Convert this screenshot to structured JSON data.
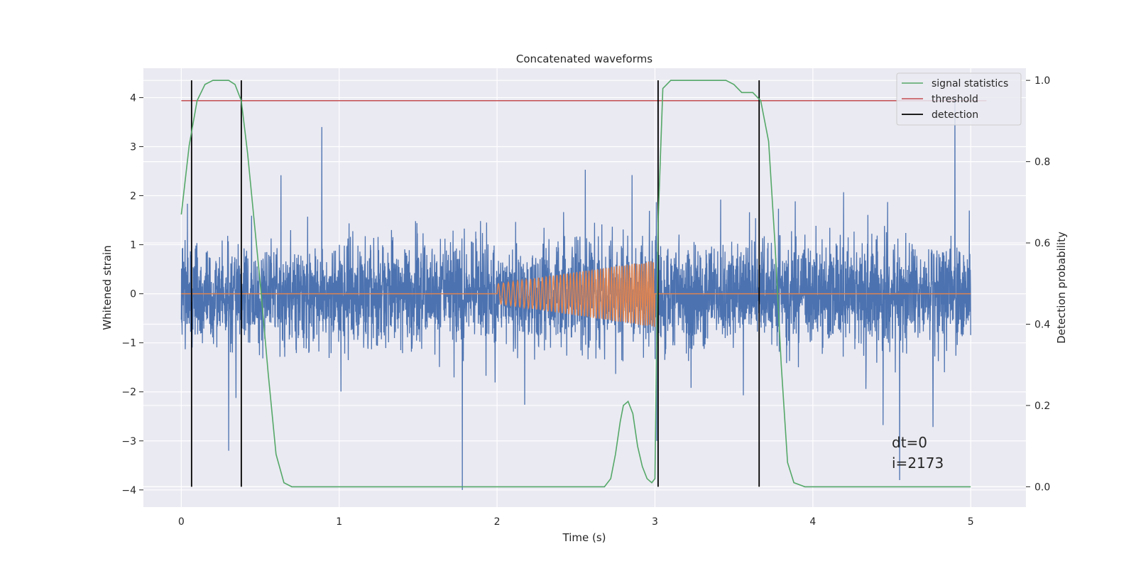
{
  "chart_data": {
    "type": "line",
    "title": "Concatenated waveforms",
    "xlabel": "Time (s)",
    "ylabel": "Whitened strain",
    "y2label": "Detection probability",
    "xlim": [
      -0.24,
      5.35
    ],
    "ylim": [
      -4.35,
      4.6
    ],
    "y2lim": [
      -0.05,
      1.03
    ],
    "x_ticks": [
      0,
      1,
      2,
      3,
      4,
      5
    ],
    "x_tick_labels": [
      "0",
      "1",
      "2",
      "3",
      "4",
      "5"
    ],
    "y_ticks": [
      -4,
      -3,
      -2,
      -1,
      0,
      1,
      2,
      3,
      4
    ],
    "y_tick_labels": [
      "−4",
      "−3",
      "−2",
      "−1",
      "0",
      "1",
      "2",
      "3",
      "4"
    ],
    "y2_ticks": [
      0.0,
      0.2,
      0.4,
      0.6,
      0.8,
      1.0
    ],
    "y2_tick_labels": [
      "0.0",
      "0.2",
      "0.4",
      "0.6",
      "0.8",
      "1.0"
    ],
    "grid": true,
    "legend_position": "top-right",
    "annotations": [
      "dt=0",
      "i=2173"
    ],
    "series": [
      {
        "axis": "left",
        "color": "#4c72b0",
        "kind": "noise",
        "x_range": [
          0,
          5
        ],
        "envelope_typical": [
          -1.5,
          2.2
        ],
        "notable_spikes": [
          [
            0.3,
            3.3
          ],
          [
            0.89,
            3.4
          ],
          [
            1.78,
            -4.0
          ],
          [
            4.55,
            -3.8
          ],
          [
            4.9,
            4.0
          ],
          [
            0.3,
            -3.2
          ]
        ]
      },
      {
        "axis": "left",
        "color": "#dd8452",
        "kind": "chirp",
        "x_range": [
          0,
          5
        ],
        "chirp_start": 2.0,
        "chirp_end": 3.0,
        "chirp_start_amplitude": 0.2,
        "chirp_end_amplitude": 0.68
      },
      {
        "name": "signal statistics",
        "axis": "right",
        "color": "#55a868",
        "x": [
          0,
          0.05,
          0.1,
          0.15,
          0.2,
          0.25,
          0.3,
          0.34,
          0.38,
          0.42,
          0.45,
          0.5,
          0.55,
          0.6,
          0.65,
          0.7,
          1.5,
          2.0,
          2.5,
          2.68,
          2.72,
          2.75,
          2.78,
          2.8,
          2.83,
          2.86,
          2.89,
          2.92,
          2.95,
          2.98,
          3.0,
          3.02,
          3.05,
          3.1,
          3.3,
          3.45,
          3.5,
          3.55,
          3.62,
          3.67,
          3.72,
          3.76,
          3.8,
          3.84,
          3.88,
          3.95,
          4.5,
          5.0
        ],
        "values": [
          0.67,
          0.84,
          0.95,
          0.99,
          1.0,
          1.0,
          1.0,
          0.99,
          0.95,
          0.82,
          0.7,
          0.5,
          0.28,
          0.08,
          0.01,
          0.0,
          0.0,
          0.0,
          0.0,
          0.0,
          0.02,
          0.08,
          0.16,
          0.2,
          0.21,
          0.18,
          0.1,
          0.05,
          0.02,
          0.01,
          0.02,
          0.65,
          0.98,
          1.0,
          1.0,
          1.0,
          0.99,
          0.97,
          0.97,
          0.95,
          0.85,
          0.6,
          0.3,
          0.06,
          0.01,
          0.0,
          0.0,
          0.0
        ]
      },
      {
        "name": "threshold",
        "axis": "right",
        "color": "#c44e52",
        "x": [
          0,
          5.1
        ],
        "values": [
          0.95,
          0.95
        ]
      },
      {
        "name": "detection",
        "axis": "right",
        "color": "#000000",
        "kind": "vlines",
        "x": [
          0.065,
          0.38,
          3.02,
          3.66
        ],
        "ymin": 0.0,
        "ymax": 1.0
      }
    ]
  }
}
